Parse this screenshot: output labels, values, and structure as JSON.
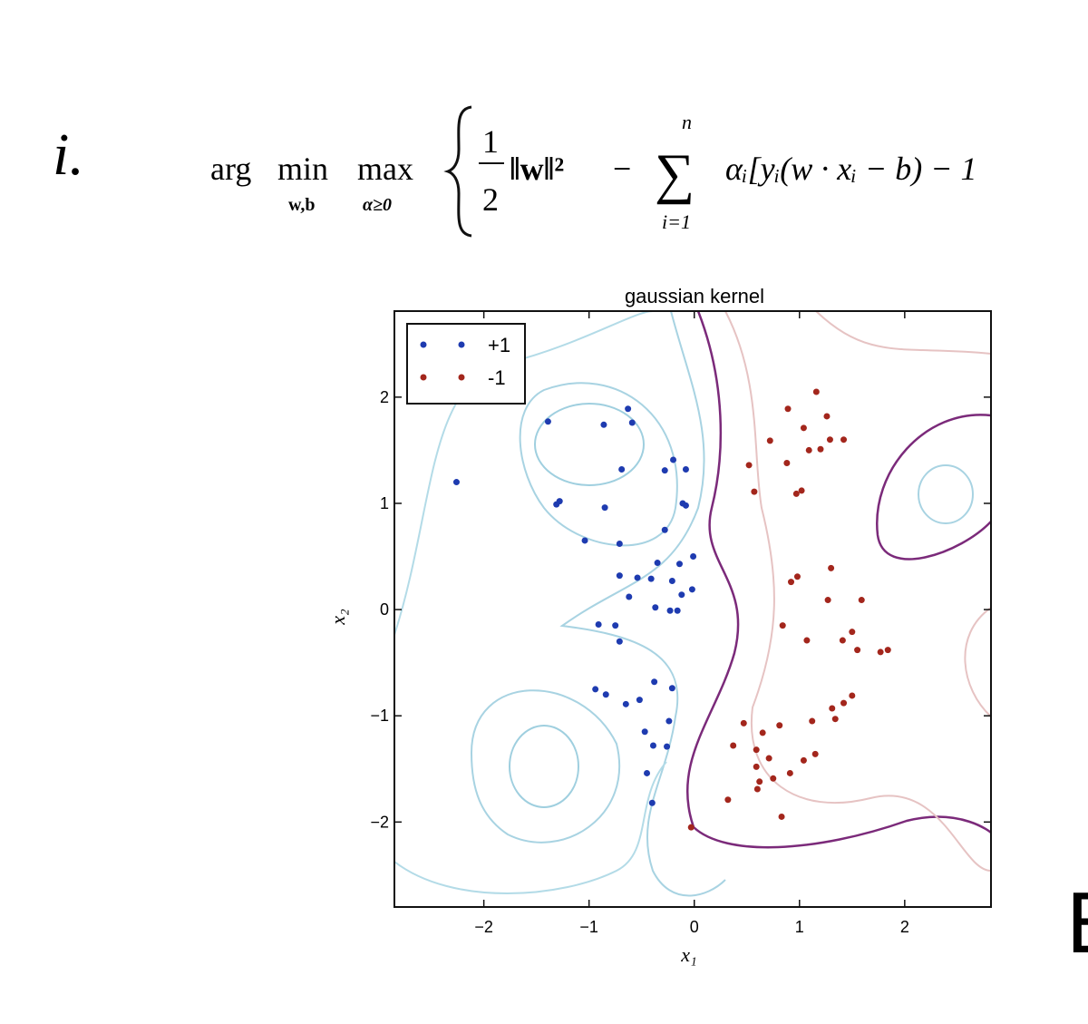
{
  "slide": {
    "item_label": "i.",
    "formula": {
      "arg": "arg",
      "min": "min",
      "min_sub": "w,b",
      "max": "max",
      "max_sub": "α≥0",
      "numerator": "1",
      "denominator": "2",
      "norm": "‖w‖²",
      "minus": "−",
      "sum_top": "n",
      "sum": "∑",
      "sum_bottom": "i=1",
      "rest": "αᵢ[yᵢ(w · xᵢ − b) − 1"
    },
    "next_label": "E"
  },
  "chart_data": {
    "type": "scatter",
    "title": "gaussian kernel",
    "x_label": "x₁",
    "y_label": "x₂",
    "xlim": [
      -2.85,
      2.82
    ],
    "ylim": [
      -2.8,
      2.81
    ],
    "xticks": [
      {
        "value": -2,
        "label": "−2"
      },
      {
        "value": -1,
        "label": "−1"
      },
      0,
      1,
      2
    ],
    "yticks": [
      {
        "value": -2,
        "label": "−2"
      },
      {
        "value": -1,
        "label": "−1"
      },
      0,
      1,
      2
    ],
    "legend": "upper left",
    "series": [
      {
        "name": "+1",
        "color": "#1e3bb0",
        "x": [
          -2.26,
          -1.39,
          -0.86,
          -0.63,
          -0.59,
          -0.69,
          -1.31,
          -1.28,
          -0.85,
          -0.28,
          -0.2,
          -0.08,
          -0.11,
          -0.08,
          -0.28,
          -1.04,
          -0.71,
          -0.35,
          -0.14,
          -0.01,
          -0.21,
          -0.71,
          -0.54,
          -0.41,
          -0.12,
          -0.02,
          -0.23,
          -0.16,
          -0.91,
          -0.75,
          -0.71,
          -0.37,
          -0.62,
          -0.94,
          -0.84,
          -0.65,
          -0.52,
          -0.38,
          -0.21,
          -0.47,
          -0.24,
          -0.39,
          -0.26,
          -0.45,
          -0.4
        ],
        "values": [
          1.2,
          1.77,
          1.74,
          1.89,
          1.76,
          1.32,
          0.99,
          1.02,
          0.96,
          1.31,
          1.41,
          1.32,
          1.0,
          0.98,
          0.75,
          0.65,
          0.62,
          0.44,
          0.43,
          0.5,
          0.27,
          0.32,
          0.3,
          0.29,
          0.14,
          0.19,
          -0.01,
          -0.01,
          -0.14,
          -0.15,
          -0.3,
          0.02,
          0.12,
          -0.75,
          -0.8,
          -0.89,
          -0.85,
          -0.68,
          -0.74,
          -1.15,
          -1.05,
          -1.28,
          -1.29,
          -1.54,
          -1.82
        ]
      },
      {
        "name": "-1",
        "color": "#a3261c",
        "x": [
          0.72,
          0.89,
          1.16,
          1.26,
          1.29,
          1.2,
          1.04,
          1.09,
          1.42,
          0.52,
          0.57,
          0.97,
          1.02,
          0.88,
          0.98,
          0.92,
          1.3,
          1.59,
          1.27,
          1.5,
          1.55,
          1.77,
          1.84,
          1.41,
          1.07,
          0.84,
          1.42,
          1.5,
          1.31,
          1.12,
          1.34,
          0.81,
          0.65,
          0.47,
          0.37,
          0.59,
          0.71,
          1.15,
          1.04,
          0.91,
          0.75,
          0.62,
          0.59,
          0.6,
          0.83,
          0.32,
          -0.03
        ],
        "values": [
          1.59,
          1.89,
          2.05,
          1.82,
          1.6,
          1.51,
          1.71,
          1.5,
          1.6,
          1.36,
          1.11,
          1.09,
          1.12,
          1.38,
          0.31,
          0.26,
          0.39,
          0.09,
          0.09,
          -0.21,
          -0.38,
          -0.4,
          -0.38,
          -0.29,
          -0.29,
          -0.15,
          -0.88,
          -0.81,
          -0.93,
          -1.05,
          -1.03,
          -1.09,
          -1.16,
          -1.07,
          -1.28,
          -1.32,
          -1.4,
          -1.36,
          -1.42,
          -1.54,
          -1.59,
          -1.62,
          -1.48,
          -1.69,
          -1.95,
          -1.79,
          -2.05
        ]
      }
    ]
  }
}
